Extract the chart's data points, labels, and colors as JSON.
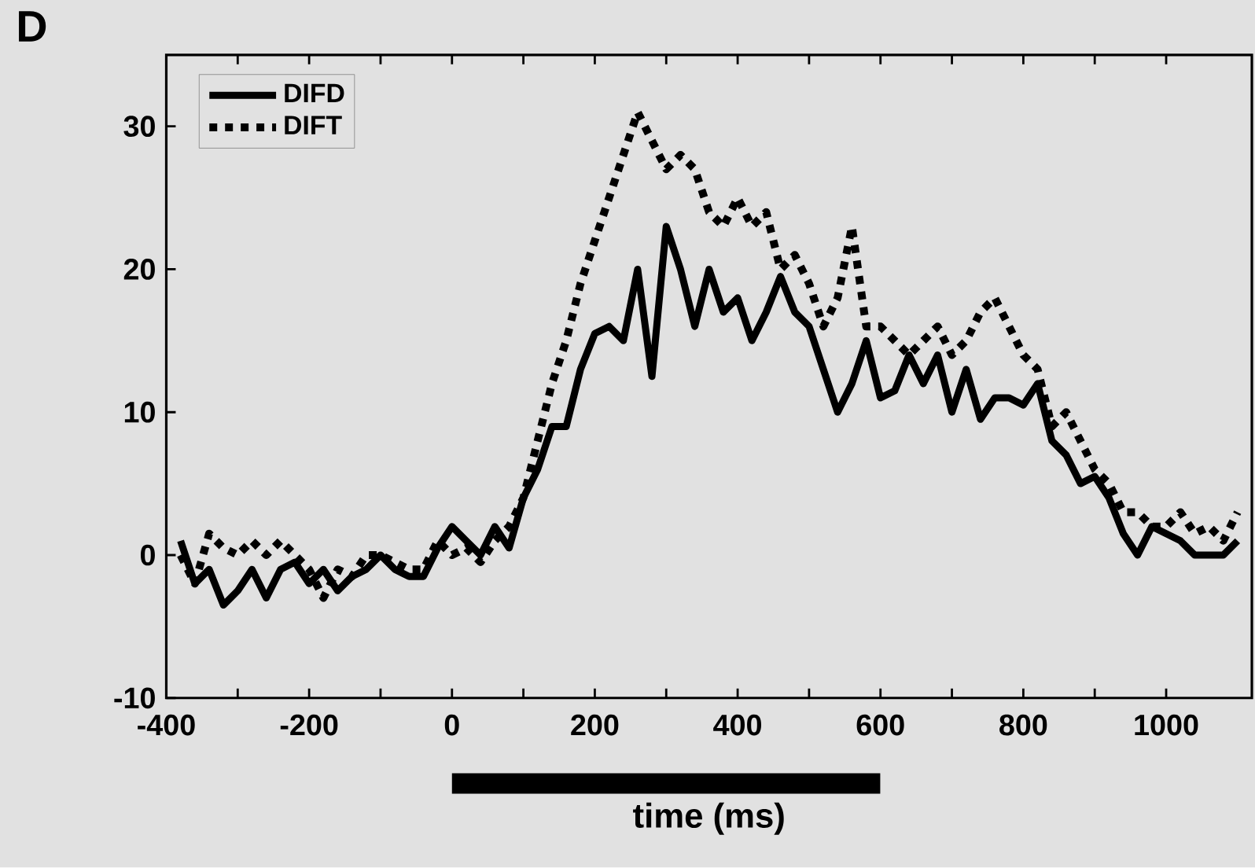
{
  "chart_data": {
    "type": "line",
    "xlabel": "time (ms)",
    "annotations": [
      "D"
    ],
    "x": [
      -380,
      -360,
      -340,
      -320,
      -300,
      -280,
      -260,
      -240,
      -220,
      -200,
      -180,
      -160,
      -140,
      -120,
      -100,
      -80,
      -60,
      -40,
      -20,
      0,
      20,
      40,
      60,
      80,
      100,
      120,
      140,
      160,
      180,
      200,
      220,
      240,
      260,
      280,
      300,
      320,
      340,
      360,
      380,
      400,
      420,
      440,
      460,
      480,
      500,
      520,
      540,
      560,
      580,
      600,
      620,
      640,
      660,
      680,
      700,
      720,
      740,
      760,
      780,
      800,
      820,
      840,
      860,
      880,
      900,
      920,
      940,
      960,
      980,
      1000,
      1020,
      1040,
      1060,
      1080,
      1100
    ],
    "series": [
      {
        "name": "DIFD",
        "color": "#000000",
        "line_style": "solid",
        "values": [
          1,
          -2,
          -1,
          -3.5,
          -2.5,
          -1,
          -3,
          -1,
          -0.5,
          -2,
          -1,
          -2.5,
          -1.5,
          -1,
          0,
          -1,
          -1.5,
          -1.5,
          0.5,
          2,
          1,
          0,
          2,
          0.5,
          4,
          6,
          9,
          9,
          13,
          15.5,
          16,
          15,
          20,
          12.5,
          23,
          20,
          16,
          20,
          17,
          18,
          15,
          17,
          19.5,
          17,
          16,
          13,
          10,
          12,
          15,
          11,
          11.5,
          14,
          12,
          14,
          10,
          13,
          9.5,
          11,
          11,
          10.5,
          12,
          8,
          7,
          5,
          5.5,
          4,
          1.5,
          0,
          2,
          1.5,
          1,
          0,
          0,
          0,
          1
        ]
      },
      {
        "name": "DIFT",
        "color": "#000000",
        "line_style": "dotted",
        "values": [
          0,
          -2,
          1.5,
          0.5,
          0,
          1,
          0,
          1,
          0,
          -1,
          -3,
          -1,
          -1.5,
          0,
          0,
          -0.5,
          -1,
          -1,
          1,
          0,
          0.5,
          -0.5,
          1,
          2,
          4,
          8,
          12,
          15,
          19,
          22,
          25,
          28,
          31,
          29,
          27,
          28,
          27,
          24,
          23,
          25,
          23,
          24,
          20,
          21,
          19,
          16,
          18,
          23,
          16,
          16,
          15,
          14,
          15,
          16,
          14,
          15,
          17,
          18,
          16,
          14,
          13,
          9,
          10,
          8,
          6,
          5,
          3,
          3,
          2,
          2,
          3,
          1.5,
          2,
          1,
          3
        ]
      }
    ],
    "xlim": [
      -400,
      1120
    ],
    "ylim": [
      -10,
      35
    ],
    "xticks": [
      -400,
      -200,
      0,
      200,
      400,
      600,
      800,
      1000
    ],
    "yticks": [
      -10,
      0,
      10,
      20,
      30
    ],
    "legend": "top left",
    "grid": false
  }
}
